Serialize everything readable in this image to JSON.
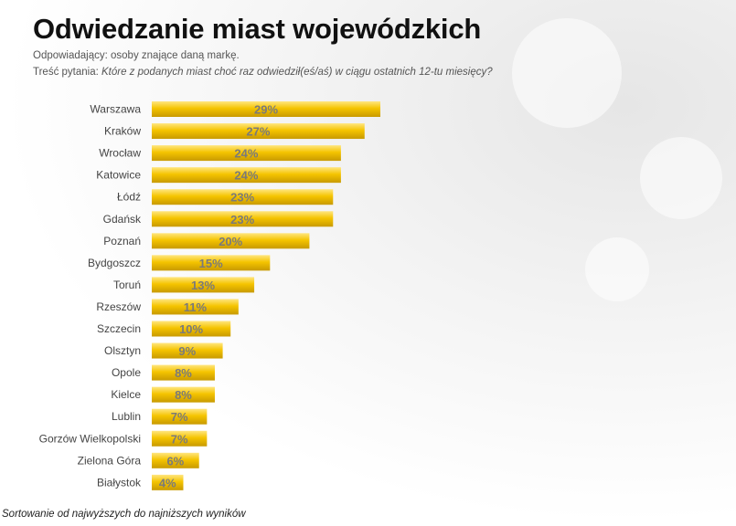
{
  "header": {
    "title": "Odwiedzanie miast wojewódzkich",
    "respondents": "Odpowiadający:  osoby  znające daną markę.",
    "question_label": "Treść pytania: ",
    "question_text": "Które z podanych  miast choć raz odwiedził(eś/aś)  w ciągu ostatnich 12-tu miesięcy?"
  },
  "footer": {
    "note": "Sortowanie od najwyższych do najniższych wyników"
  },
  "colors": {
    "bar_top": "#FFE680",
    "bar_mid": "#F5C400",
    "bar_bottom": "#C89A00",
    "label_text": "#7a7a7a",
    "category_text": "#444444"
  },
  "chart_data": {
    "type": "bar",
    "orientation": "horizontal",
    "title": "Odwiedzanie miast wojewódzkich",
    "xlabel": "",
    "ylabel": "",
    "xlim": [
      0,
      29
    ],
    "categories": [
      "Warszawa",
      "Kraków",
      "Wrocław",
      "Katowice",
      "Łódź",
      "Gdańsk",
      "Poznań",
      "Bydgoszcz",
      "Toruń",
      "Rzeszów",
      "Szczecin",
      "Olsztyn",
      "Opole",
      "Kielce",
      "Lublin",
      "Gorzów Wielkopolski",
      "Zielona Góra",
      "Białystok"
    ],
    "values": [
      29,
      27,
      24,
      24,
      23,
      23,
      20,
      15,
      13,
      11,
      10,
      9,
      8,
      8,
      7,
      7,
      6,
      4
    ],
    "data_labels": [
      "29%",
      "27%",
      "24%",
      "24%",
      "23%",
      "23%",
      "20%",
      "15%",
      "13%",
      "11%",
      "10%",
      "9%",
      "8%",
      "8%",
      "7%",
      "7%",
      "6%",
      "4%"
    ]
  }
}
